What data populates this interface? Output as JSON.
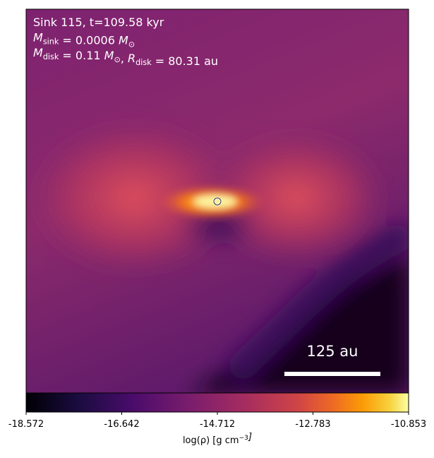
{
  "chart_data": {
    "type": "density-map",
    "annotations": [
      [
        {
          "t": "Sink 115, t=109.58 kyr"
        }
      ],
      [
        {
          "t": "M"
        },
        {
          "sub": "sink"
        },
        {
          "t": " = 0.0006 "
        },
        {
          "t": "M"
        },
        {
          "sub": "⊙"
        }
      ],
      [
        {
          "t": "M"
        },
        {
          "sub": "disk"
        },
        {
          "t": " = 0.11 "
        },
        {
          "t": "M"
        },
        {
          "sub": "⊙"
        },
        {
          "t": ", "
        },
        {
          "t": "R"
        },
        {
          "sub": "disk"
        },
        {
          "t": " = 80.31 au"
        }
      ]
    ],
    "scale_bar": "125 au",
    "colorbar": {
      "label": [
        {
          "t": "log(ρ) [g cm"
        },
        {
          "sup": "−3"
        },
        {
          "t": "]"
        }
      ],
      "lim": [
        -18.572,
        -10.853
      ],
      "ticks": [
        -18.572,
        -16.642,
        -14.712,
        -12.783,
        -10.853
      ]
    }
  }
}
